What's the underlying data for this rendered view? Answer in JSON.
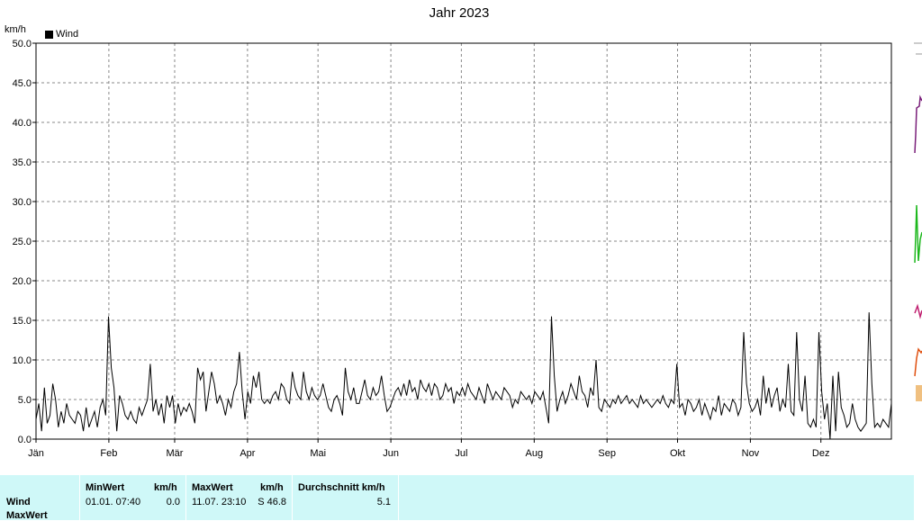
{
  "chart_data": {
    "type": "line",
    "title": "Jahr 2023",
    "ylabel": "km/h",
    "ylim": [
      0,
      50
    ],
    "yticks": [
      "0.0",
      "5.0",
      "10.0",
      "15.0",
      "20.0",
      "25.0",
      "30.0",
      "35.0",
      "40.0",
      "45.0",
      "50.0"
    ],
    "xticks": [
      "Jän",
      "Feb",
      "Mär",
      "Apr",
      "Mai",
      "Jun",
      "Jul",
      "Aug",
      "Sep",
      "Okt",
      "Nov",
      "Dez"
    ],
    "grid": true,
    "legend_position": "top-left",
    "series": [
      {
        "name": "Wind",
        "color": "#000000",
        "values": [
          2.5,
          4.5,
          1.0,
          6.5,
          2.0,
          3.0,
          7.0,
          5.0,
          1.5,
          3.5,
          2.0,
          4.5,
          3.0,
          2.5,
          2.0,
          3.5,
          3.0,
          1.0,
          4.0,
          1.5,
          2.5,
          3.5,
          1.5,
          4.0,
          5.0,
          3.0,
          15.5,
          9.0,
          6.5,
          1.0,
          5.5,
          4.5,
          3.0,
          2.5,
          3.5,
          2.5,
          2.0,
          4.0,
          3.0,
          4.0,
          5.0,
          9.5,
          3.5,
          5.0,
          3.0,
          4.5,
          2.0,
          5.5,
          4.0,
          5.5,
          2.0,
          4.5,
          3.0,
          4.0,
          3.5,
          4.5,
          3.5,
          2.0,
          9.0,
          7.5,
          8.5,
          3.5,
          6.0,
          8.5,
          7.0,
          4.5,
          5.5,
          4.5,
          3.0,
          5.0,
          4.0,
          6.0,
          7.0,
          11.0,
          6.0,
          2.5,
          6.0,
          4.5,
          8.0,
          6.5,
          8.5,
          5.0,
          4.5,
          5.0,
          4.5,
          5.5,
          6.0,
          5.0,
          7.0,
          6.5,
          5.0,
          4.5,
          8.5,
          6.5,
          5.5,
          5.0,
          8.5,
          6.0,
          5.0,
          6.5,
          5.5,
          5.0,
          5.5,
          7.0,
          5.5,
          4.0,
          3.5,
          5.0,
          5.5,
          4.5,
          3.0,
          9.0,
          6.0,
          5.0,
          6.5,
          4.5,
          4.5,
          6.0,
          7.5,
          5.5,
          5.0,
          6.5,
          5.5,
          6.0,
          8.0,
          5.5,
          3.5,
          4.0,
          5.0,
          6.0,
          6.5,
          5.5,
          7.0,
          5.5,
          7.5,
          6.0,
          6.5,
          5.0,
          7.5,
          6.5,
          6.0,
          7.0,
          5.5,
          7.0,
          6.5,
          5.0,
          5.5,
          7.0,
          6.0,
          6.5,
          4.5,
          6.0,
          5.5,
          6.5,
          5.5,
          7.0,
          6.0,
          5.5,
          5.0,
          6.5,
          5.5,
          4.5,
          7.0,
          6.0,
          5.0,
          6.0,
          5.5,
          5.0,
          6.5,
          6.0,
          5.5,
          4.0,
          5.0,
          4.5,
          6.0,
          5.5,
          5.0,
          5.5,
          4.5,
          6.0,
          5.5,
          5.0,
          6.0,
          4.0,
          2.0,
          15.5,
          8.0,
          3.5,
          5.0,
          6.0,
          4.5,
          5.5,
          7.0,
          6.0,
          5.0,
          8.0,
          6.0,
          5.5,
          4.0,
          6.5,
          5.5,
          10.0,
          4.0,
          3.5,
          5.0,
          4.5,
          4.0,
          5.0,
          4.5,
          5.5,
          4.5,
          5.0,
          5.5,
          4.5,
          5.0,
          4.5,
          4.0,
          5.5,
          4.5,
          5.0,
          4.5,
          4.0,
          4.5,
          5.0,
          4.5,
          5.5,
          4.5,
          4.0,
          5.0,
          4.5,
          9.5,
          4.0,
          4.5,
          3.0,
          5.0,
          4.5,
          3.5,
          4.0,
          5.0,
          3.0,
          4.5,
          3.5,
          2.5,
          4.0,
          3.5,
          5.5,
          3.0,
          4.5,
          4.0,
          3.5,
          5.0,
          4.5,
          3.0,
          4.0,
          13.5,
          7.0,
          4.5,
          3.5,
          4.0,
          5.0,
          3.0,
          8.0,
          4.5,
          6.5,
          4.0,
          5.5,
          6.5,
          3.5,
          5.0,
          4.0,
          9.5,
          3.5,
          3.0,
          13.5,
          5.0,
          3.5,
          8.0,
          2.0,
          1.5,
          2.5,
          1.5,
          13.5,
          6.0,
          2.5,
          4.5,
          0.0,
          8.0,
          1.0,
          8.5,
          4.0,
          3.0,
          1.5,
          2.0,
          4.5,
          2.5,
          1.5,
          1.0,
          1.5,
          2.0,
          16.0,
          7.0,
          1.5,
          2.0,
          1.5,
          2.5,
          2.0,
          1.5,
          4.5
        ]
      }
    ]
  },
  "stats": {
    "row_labels": [
      "Wind",
      "MaxWert"
    ],
    "columns": [
      {
        "header": "MinWert",
        "unit": "km/h",
        "time": "01.01.  07:40",
        "value": "0.0"
      },
      {
        "header": "MaxWert",
        "unit": "km/h",
        "time": "11.07.  23:10",
        "value": "S 46.8"
      },
      {
        "header": "Durchschnitt km/h",
        "value": "5.1"
      }
    ]
  }
}
